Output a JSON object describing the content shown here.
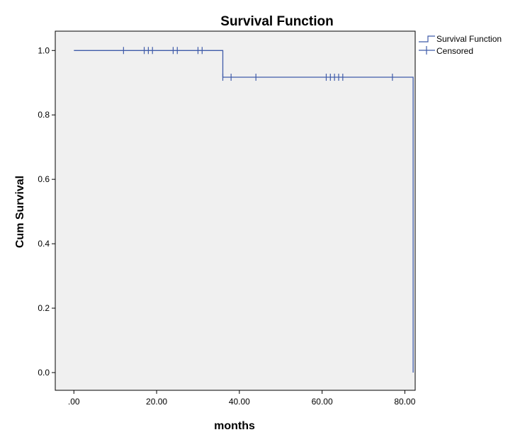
{
  "chart_data": {
    "type": "line",
    "title": "Survival Function",
    "xlabel": "months",
    "ylabel": "Cum Survival",
    "xlim": [
      -4.5,
      82.5
    ],
    "ylim": [
      -0.055,
      1.06
    ],
    "x_ticks": [
      0,
      20,
      40,
      60,
      80
    ],
    "x_tick_labels": [
      ".00",
      "20.00",
      "40.00",
      "60.00",
      "80.00"
    ],
    "y_ticks": [
      0.0,
      0.2,
      0.4,
      0.6,
      0.8,
      1.0
    ],
    "y_tick_labels": [
      "0.0",
      "0.2",
      "0.4",
      "0.6",
      "0.8",
      "1.0"
    ],
    "grid": false,
    "legend_position": "top-right, outside plot",
    "plot_background": "#f0f0f0",
    "series": [
      {
        "name": "Survival Function",
        "color": "#3f5ba9",
        "step_x": [
          0,
          36,
          36,
          82,
          82
        ],
        "step_y": [
          1.0,
          1.0,
          0.917,
          0.917,
          0.0
        ]
      },
      {
        "name": "Censored",
        "color": "#3f5ba9",
        "points": [
          [
            12,
            1.0
          ],
          [
            17,
            1.0
          ],
          [
            18,
            1.0
          ],
          [
            19,
            1.0
          ],
          [
            24,
            1.0
          ],
          [
            25,
            1.0
          ],
          [
            30,
            1.0
          ],
          [
            31,
            1.0
          ],
          [
            36,
            0.917
          ],
          [
            38,
            0.917
          ],
          [
            44,
            0.917
          ],
          [
            61,
            0.917
          ],
          [
            62,
            0.917
          ],
          [
            63,
            0.917
          ],
          [
            64,
            0.917
          ],
          [
            65,
            0.917
          ],
          [
            77,
            0.917
          ]
        ]
      }
    ]
  }
}
